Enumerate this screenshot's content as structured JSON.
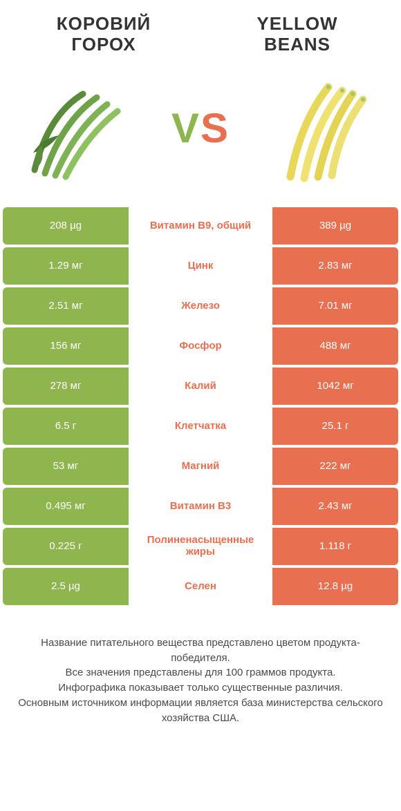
{
  "colors": {
    "left": "#8fb64e",
    "right": "#e86f4f",
    "bg": "#ffffff",
    "text": "#4a4a4a"
  },
  "header": {
    "left_title": "КОРОВИЙ ГОРОХ",
    "right_title": "YELLOW BEANS",
    "vs_v": "V",
    "vs_s": "S"
  },
  "rows": [
    {
      "label": "Витамин B9, общий",
      "left": "208 µg",
      "right": "389 µg",
      "winner": "right"
    },
    {
      "label": "Цинк",
      "left": "1.29 мг",
      "right": "2.83 мг",
      "winner": "right"
    },
    {
      "label": "Железо",
      "left": "2.51 мг",
      "right": "7.01 мг",
      "winner": "right"
    },
    {
      "label": "Фосфор",
      "left": "156 мг",
      "right": "488 мг",
      "winner": "right"
    },
    {
      "label": "Калий",
      "left": "278 мг",
      "right": "1042 мг",
      "winner": "right"
    },
    {
      "label": "Клетчатка",
      "left": "6.5 г",
      "right": "25.1 г",
      "winner": "right"
    },
    {
      "label": "Магний",
      "left": "53 мг",
      "right": "222 мг",
      "winner": "right"
    },
    {
      "label": "Витамин B3",
      "left": "0.495 мг",
      "right": "2.43 мг",
      "winner": "right"
    },
    {
      "label": "Полиненасыщенные жиры",
      "left": "0.225 г",
      "right": "1.118 г",
      "winner": "right"
    },
    {
      "label": "Селен",
      "left": "2.5 µg",
      "right": "12.8 µg",
      "winner": "right"
    }
  ],
  "footer": {
    "line1": "Название питательного вещества представлено цветом продукта-победителя.",
    "line2": "Все значения представлены для 100 граммов продукта.",
    "line3": "Инфографика показывает только существенные различия.",
    "line4": "Основным источником информации является база министерства сельского хозяйства США."
  }
}
